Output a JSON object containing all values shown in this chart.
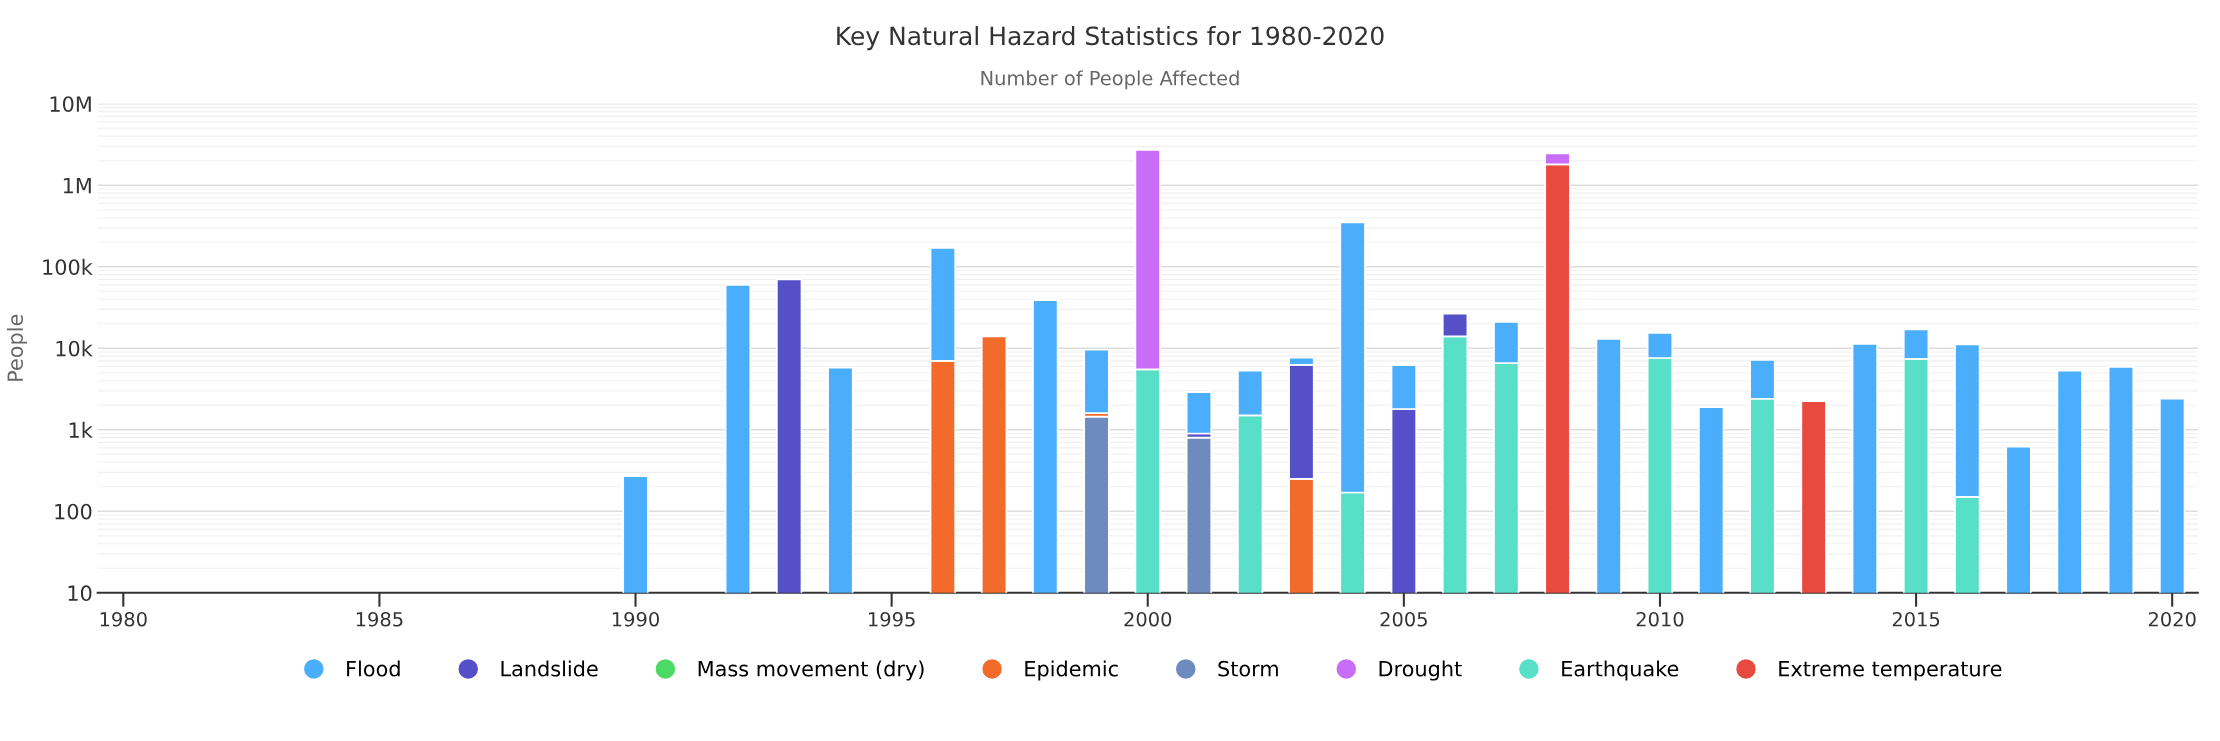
{
  "chart_data": {
    "type": "bar",
    "title": "Key Natural Hazard Statistics for 1980-2020",
    "subtitle": "Number of People Affected",
    "ylabel": "People",
    "stacked": true,
    "log": "y",
    "grid": "y",
    "legend": "bottom",
    "marker": "circle",
    "x": [
      1990,
      1992,
      1993,
      1994,
      1996,
      1997,
      1998,
      1999,
      2000,
      2001,
      2002,
      2003,
      2004,
      2005,
      2006,
      2007,
      2008,
      2009,
      2010,
      2011,
      2012,
      2013,
      2014,
      2015,
      2016,
      2017,
      2018,
      2019,
      2020
    ],
    "xlim": [
      1979.5,
      2020.5
    ],
    "xticks": [
      1980,
      1985,
      1990,
      1995,
      2000,
      2005,
      2010,
      2015,
      2020
    ],
    "ylim": [
      10,
      10000000
    ],
    "yticks": [
      10,
      100,
      {
        "value": 1000,
        "label": "1k"
      },
      {
        "value": 10000,
        "label": "10k"
      },
      {
        "value": 100000,
        "label": "100k"
      },
      {
        "value": 1000000,
        "label": "1M"
      },
      {
        "value": 10000000,
        "label": "10M"
      }
    ],
    "series": [
      {
        "name": "Extreme temperature",
        "color": "#e84a3f",
        "values": [
          null,
          null,
          null,
          null,
          null,
          null,
          null,
          null,
          null,
          null,
          null,
          null,
          null,
          null,
          null,
          null,
          1800000,
          null,
          null,
          null,
          null,
          2250,
          null,
          null,
          null,
          null,
          null,
          null,
          null
        ]
      },
      {
        "name": "Earthquake",
        "color": "#57dfc8",
        "values": [
          null,
          null,
          null,
          null,
          null,
          null,
          null,
          null,
          5500,
          null,
          1500,
          null,
          170,
          null,
          14000,
          6600,
          null,
          null,
          7600,
          null,
          2400,
          null,
          null,
          7400,
          150,
          null,
          null,
          null,
          null
        ]
      },
      {
        "name": "Drought",
        "color": "#c96cf7",
        "values": [
          null,
          null,
          null,
          null,
          null,
          null,
          null,
          null,
          2700000,
          null,
          null,
          null,
          null,
          null,
          null,
          null,
          650000,
          null,
          null,
          null,
          null,
          null,
          null,
          null,
          null,
          null,
          null,
          null,
          null
        ]
      },
      {
        "name": "Storm",
        "color": "#6e8bbf",
        "values": [
          null,
          null,
          null,
          null,
          null,
          null,
          null,
          1450,
          null,
          800,
          null,
          null,
          null,
          null,
          null,
          null,
          null,
          null,
          null,
          null,
          null,
          null,
          null,
          null,
          null,
          null,
          null,
          null,
          null
        ]
      },
      {
        "name": "Epidemic",
        "color": "#f26b2a",
        "values": [
          null,
          null,
          null,
          null,
          7000,
          14000,
          null,
          150,
          null,
          null,
          null,
          250,
          null,
          null,
          null,
          null,
          null,
          null,
          null,
          null,
          null,
          null,
          null,
          null,
          null,
          null,
          null,
          null,
          null
        ]
      },
      {
        "name": "Mass movement (dry)",
        "color": "#4cd964",
        "values": [
          null,
          null,
          null,
          null,
          null,
          null,
          null,
          null,
          null,
          null,
          null,
          null,
          null,
          null,
          null,
          null,
          null,
          null,
          null,
          null,
          null,
          null,
          null,
          null,
          null,
          null,
          null,
          null,
          null
        ]
      },
      {
        "name": "Landslide",
        "color": "#5650c8",
        "values": [
          null,
          null,
          70000,
          null,
          null,
          null,
          null,
          null,
          null,
          100,
          null,
          6000,
          null,
          1800,
          12500,
          null,
          null,
          null,
          null,
          null,
          null,
          null,
          null,
          null,
          null,
          null,
          null,
          null,
          null
        ]
      },
      {
        "name": "Flood",
        "color": "#4aaefc",
        "values": [
          270,
          60000,
          null,
          5800,
          163000,
          null,
          39000,
          8000,
          null,
          2000,
          3800,
          1400,
          350000,
          4400,
          null,
          14500,
          null,
          13000,
          7800,
          1900,
          4800,
          null,
          11300,
          9600,
          11000,
          620,
          5300,
          5900,
          2400
        ]
      }
    ]
  }
}
